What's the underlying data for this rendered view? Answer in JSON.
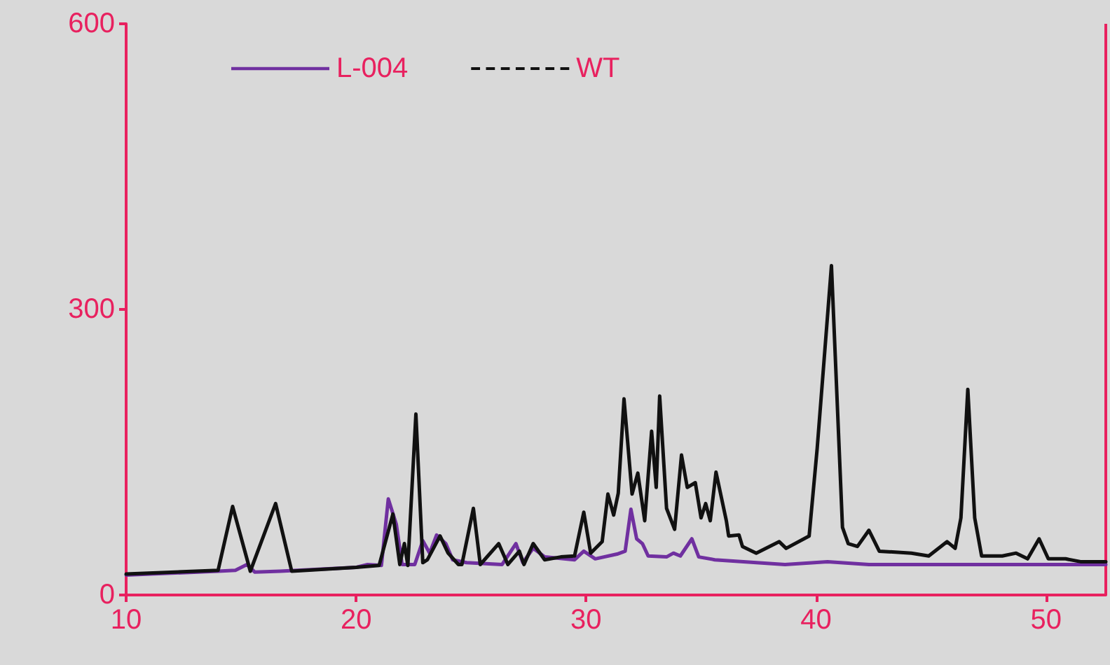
{
  "chart_data": {
    "type": "line",
    "xlim": [
      10,
      52.6
    ],
    "xticks": [
      10,
      20,
      30,
      40,
      50
    ],
    "ylim": [
      0,
      600
    ],
    "yticks": [
      0,
      300,
      600
    ],
    "grid": false,
    "legend": "top left",
    "marker": "none",
    "line_style": "solid",
    "series": [
      {
        "name": "L-004",
        "color": "#7030a0",
        "x": [
          10,
          14,
          14.75,
          15.25,
          15.6,
          16.7,
          20,
          20.5,
          21.1,
          21.4,
          21.75,
          22.0,
          22.55,
          22.9,
          23.2,
          23.5,
          23.9,
          24.2,
          24.8,
          26.35,
          26.95,
          27.25,
          27.7,
          28.2,
          29.5,
          29.9,
          30.4,
          31.35,
          31.7,
          31.95,
          32.2,
          32.45,
          32.7,
          33.5,
          33.8,
          34.1,
          34.6,
          34.9,
          35.6,
          38.65,
          40.5,
          42.3,
          47.2,
          52.6
        ],
        "values": [
          21,
          25,
          26,
          32,
          24,
          25,
          29,
          32,
          31,
          101,
          74,
          32,
          32,
          57,
          44,
          63,
          54,
          37,
          34,
          32,
          54,
          34,
          49,
          40,
          37,
          46,
          38,
          43,
          46,
          90,
          59,
          54,
          41,
          40,
          44,
          41,
          59,
          40,
          37,
          32,
          35,
          32,
          32,
          32
        ]
      },
      {
        "name": "WT",
        "color": "#111111",
        "x": [
          10,
          14,
          14.63,
          15.4,
          16.5,
          17.2,
          20,
          21,
          21.6,
          21.9,
          22.1,
          22.25,
          22.6,
          22.9,
          23.1,
          23.65,
          24.0,
          24.45,
          24.6,
          25.1,
          25.4,
          26.2,
          26.6,
          27.1,
          27.3,
          27.7,
          28.2,
          28.9,
          29.5,
          29.9,
          30.2,
          30.7,
          30.95,
          31.2,
          31.4,
          31.65,
          32.0,
          32.25,
          32.55,
          32.85,
          33.05,
          33.2,
          33.5,
          33.85,
          34.15,
          34.4,
          34.75,
          35.0,
          35.2,
          35.4,
          35.65,
          36.1,
          36.2,
          36.65,
          36.8,
          37.4,
          38.4,
          38.7,
          39.7,
          40.05,
          40.67,
          41.15,
          41.4,
          41.8,
          42.3,
          42.75,
          44.15,
          44.9,
          45.7,
          46.05,
          46.3,
          46.6,
          46.9,
          47.2,
          48.1,
          48.7,
          49.2,
          49.7,
          50.1,
          50.85,
          51.5,
          52.6
        ],
        "values": [
          22,
          26,
          93,
          25,
          96,
          25,
          29,
          31,
          85,
          32,
          54,
          31,
          190,
          34,
          37,
          62,
          44,
          32,
          32,
          91,
          32,
          54,
          32,
          46,
          32,
          54,
          37,
          40,
          41,
          87,
          44,
          56,
          106,
          84,
          107,
          206,
          106,
          128,
          78,
          172,
          113,
          209,
          91,
          69,
          147,
          113,
          118,
          81,
          96,
          78,
          129,
          78,
          62,
          63,
          51,
          44,
          56,
          49,
          62,
          154,
          346,
          71,
          54,
          51,
          68,
          46,
          44,
          41,
          56,
          49,
          81,
          216,
          81,
          41,
          41,
          44,
          38,
          59,
          38,
          38,
          35,
          35
        ]
      }
    ]
  }
}
